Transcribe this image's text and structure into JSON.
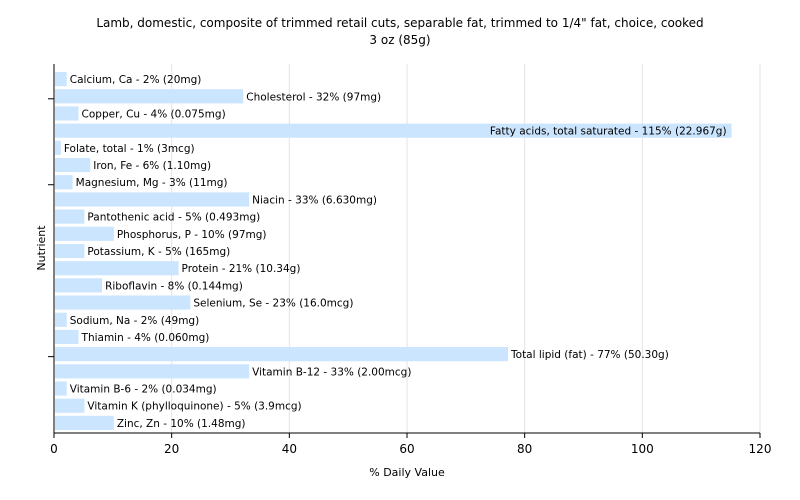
{
  "chart_data": {
    "type": "bar",
    "orientation": "horizontal",
    "title": "Lamb, domestic, composite of trimmed retail cuts, separable fat, trimmed to 1/4\" fat, choice, cooked",
    "subtitle": "3 oz (85g)",
    "xlabel": "% Daily Value",
    "ylabel": "Nutrient",
    "xlim": [
      0,
      120
    ],
    "xticks": [
      0,
      20,
      40,
      60,
      80,
      100,
      120
    ],
    "grid": true,
    "bar_color": "#cce5ff",
    "categories": [
      "Calcium, Ca",
      "Cholesterol",
      "Copper, Cu",
      "Fatty acids, total saturated",
      "Folate, total",
      "Iron, Fe",
      "Magnesium, Mg",
      "Niacin",
      "Pantothenic acid",
      "Phosphorus, P",
      "Potassium, K",
      "Protein",
      "Riboflavin",
      "Selenium, Se",
      "Sodium, Na",
      "Thiamin",
      "Total lipid (fat)",
      "Vitamin B-12",
      "Vitamin B-6",
      "Vitamin K (phylloquinone)",
      "Zinc, Zn"
    ],
    "values": [
      2,
      32,
      4,
      115,
      1,
      6,
      3,
      33,
      5,
      10,
      5,
      21,
      8,
      23,
      2,
      4,
      77,
      33,
      2,
      5,
      10
    ],
    "labels": [
      "Calcium, Ca - 2% (20mg)",
      "Cholesterol - 32% (97mg)",
      "Copper, Cu - 4% (0.075mg)",
      "Fatty acids, total saturated - 115% (22.967g)",
      "Folate, total - 1% (3mcg)",
      "Iron, Fe - 6% (1.10mg)",
      "Magnesium, Mg - 3% (11mg)",
      "Niacin - 33% (6.630mg)",
      "Pantothenic acid - 5% (0.493mg)",
      "Phosphorus, P - 10% (97mg)",
      "Potassium, K - 5% (165mg)",
      "Protein - 21% (10.34g)",
      "Riboflavin - 8% (0.144mg)",
      "Selenium, Se - 23% (16.0mcg)",
      "Sodium, Na - 2% (49mg)",
      "Thiamin - 4% (0.060mg)",
      "Total lipid (fat) - 77% (50.30g)",
      "Vitamin B-12 - 33% (2.00mcg)",
      "Vitamin B-6 - 2% (0.034mg)",
      "Vitamin K (phylloquinone) - 5% (3.9mcg)",
      "Zinc, Zn - 10% (1.48mg)"
    ]
  }
}
